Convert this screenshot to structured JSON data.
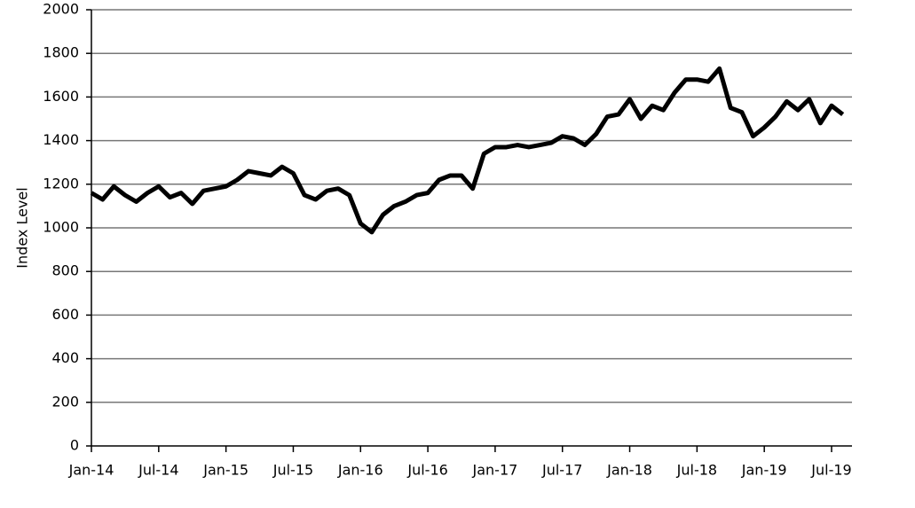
{
  "chart_data": {
    "type": "line",
    "y_label": "Index Level",
    "categories": [
      "Jan-14",
      null,
      null,
      null,
      null,
      null,
      "Jul-14",
      null,
      null,
      null,
      null,
      null,
      "Jan-15",
      null,
      null,
      null,
      null,
      null,
      "Jul-15",
      null,
      null,
      null,
      null,
      null,
      "Jan-16",
      null,
      null,
      null,
      null,
      null,
      "Jul-16",
      null,
      null,
      null,
      null,
      null,
      "Jan-17",
      null,
      null,
      null,
      null,
      null,
      "Jul-17",
      null,
      null,
      null,
      null,
      null,
      "Jan-18",
      null,
      null,
      null,
      null,
      null,
      "Jul-18",
      null,
      null,
      null,
      null,
      null,
      "Jan-19",
      null,
      null,
      null,
      null,
      null,
      "Jul-19",
      null
    ],
    "series": [
      {
        "color": "#000000",
        "values": [
          1160,
          1130,
          1190,
          1150,
          1120,
          1160,
          1190,
          1140,
          1160,
          1110,
          1170,
          1180,
          1190,
          1220,
          1260,
          1250,
          1240,
          1280,
          1250,
          1150,
          1130,
          1170,
          1180,
          1150,
          1020,
          980,
          1060,
          1100,
          1120,
          1150,
          1160,
          1220,
          1240,
          1240,
          1180,
          1340,
          1370,
          1370,
          1380,
          1370,
          1380,
          1390,
          1420,
          1410,
          1380,
          1430,
          1510,
          1520,
          1590,
          1500,
          1560,
          1540,
          1620,
          1680,
          1680,
          1670,
          1730,
          1550,
          1530,
          1420,
          1460,
          1510,
          1580,
          1540,
          1590,
          1480,
          1560,
          1520
        ]
      }
    ],
    "ylim": [
      0,
      2000
    ],
    "yticks": [
      0,
      200,
      400,
      600,
      800,
      1000,
      1200,
      1400,
      1600,
      1800,
      2000
    ],
    "grid": true
  }
}
